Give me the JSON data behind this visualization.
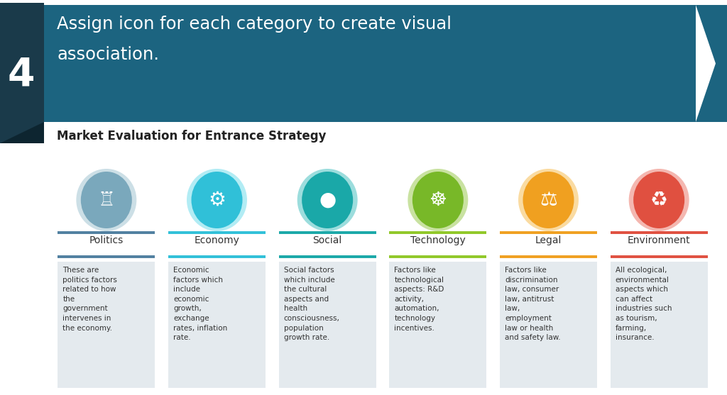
{
  "title_line1": "Assign icon for each category to create visual",
  "title_line2": "association.",
  "subtitle": "Market Evaluation for Entrance Strategy",
  "step_number": "4",
  "banner_color": "#1c6480",
  "step_box_color": "#1a3a4a",
  "fold_color": "#0d2530",
  "bg_color": "#ffffff",
  "categories": [
    "Politics",
    "Economy",
    "Social",
    "Technology",
    "Legal",
    "Environment"
  ],
  "circle_colors_outer": [
    "#8fb8c8",
    "#55d5e8",
    "#25b5b5",
    "#88c030",
    "#f5b030",
    "#e86050"
  ],
  "circle_colors_inner": [
    "#7aa8bc",
    "#30c0d8",
    "#1aa8a8",
    "#78b828",
    "#f0a020",
    "#e05040"
  ],
  "line_colors": [
    "#5080a0",
    "#30c0d8",
    "#1aa8a8",
    "#90c828",
    "#f0a020",
    "#e05040"
  ],
  "box_bg_color": "#e4eaee",
  "descriptions": [
    "These are\npolitics factors\nrelated to how\nthe\ngovernment\nintervenes in\nthe economy.",
    "Economic\nfactors which\ninclude\neconomic\ngrowth,\nexchange\nrates, inflation\nrate.",
    "Social factors\nwhich include\nthe cultural\naspects and\nhealth\nconsciousness,\npopulation\ngrowth rate.",
    "Factors like\ntechnological\naspects: R&D\nactivity,\nautomation,\ntechnology\nincentives.",
    "Factors like\ndiscrimination\nlaw, consumer\nlaw, antitrust\nlaw,\nemployment\nlaw or health\nand safety law.",
    "All ecological,\nenvironmental\naspects which\ncan affect\nindustries such\nas tourism,\nfarming,\ninsurance."
  ],
  "text_color": "#333333",
  "title_text_color": "#ffffff",
  "subtitle_color": "#222222"
}
